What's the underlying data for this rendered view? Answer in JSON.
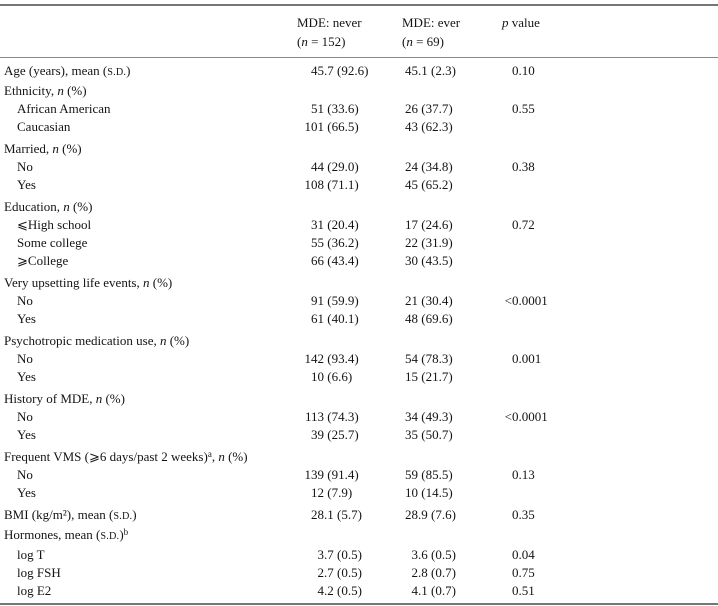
{
  "table": {
    "columns": {
      "never": {
        "title": "MDE: never",
        "n_parts": [
          {
            "t": "("
          },
          {
            "t": "n",
            "s": "it"
          },
          {
            "t": " = 152)"
          }
        ]
      },
      "ever": {
        "title": "MDE: ever",
        "n_parts": [
          {
            "t": "("
          },
          {
            "t": "n",
            "s": "it"
          },
          {
            "t": " = 69)"
          }
        ]
      },
      "p": {
        "label_parts": [
          {
            "t": "p",
            "s": "it"
          },
          {
            "t": " value"
          }
        ]
      }
    },
    "rows": [
      {
        "indent": 0,
        "gap": false,
        "label": [
          {
            "t": "Age (years), mean ("
          },
          {
            "t": "s.d.",
            "s": "sc"
          },
          {
            "t": ")"
          }
        ],
        "v1": "45.7 (92.6)",
        "v2": "45.1 (2.3)",
        "p": "0.10"
      },
      {
        "indent": 0,
        "gap": false,
        "label": [
          {
            "t": "Ethnicity, "
          },
          {
            "t": "n",
            "s": "it"
          },
          {
            "t": " (%)"
          }
        ],
        "v1": "",
        "v2": "",
        "p": ""
      },
      {
        "indent": 1,
        "gap": false,
        "label": [
          {
            "t": "African American"
          }
        ],
        "v1": "51 (33.6)",
        "v2": "26 (37.7)",
        "p": "0.55"
      },
      {
        "indent": 1,
        "gap": false,
        "label": [
          {
            "t": "Caucasian"
          }
        ],
        "v1": "101 (66.5)",
        "v2": "43 (62.3)",
        "p": ""
      },
      {
        "indent": 0,
        "gap": true,
        "label": [
          {
            "t": "Married, "
          },
          {
            "t": "n",
            "s": "it"
          },
          {
            "t": " (%)"
          }
        ],
        "v1": "",
        "v2": "",
        "p": ""
      },
      {
        "indent": 1,
        "gap": false,
        "label": [
          {
            "t": "No"
          }
        ],
        "v1": "44 (29.0)",
        "v2": "24 (34.8)",
        "p": "0.38"
      },
      {
        "indent": 1,
        "gap": false,
        "label": [
          {
            "t": "Yes"
          }
        ],
        "v1": "108 (71.1)",
        "v2": "45 (65.2)",
        "p": ""
      },
      {
        "indent": 0,
        "gap": true,
        "label": [
          {
            "t": "Education, "
          },
          {
            "t": "n",
            "s": "it"
          },
          {
            "t": " (%)"
          }
        ],
        "v1": "",
        "v2": "",
        "p": ""
      },
      {
        "indent": 1,
        "gap": false,
        "label": [
          {
            "t": "⩽High school"
          }
        ],
        "v1": "31 (20.4)",
        "v2": "17 (24.6)",
        "p": "0.72"
      },
      {
        "indent": 1,
        "gap": false,
        "label": [
          {
            "t": "Some college"
          }
        ],
        "v1": "55 (36.2)",
        "v2": "22 (31.9)",
        "p": ""
      },
      {
        "indent": 1,
        "gap": false,
        "label": [
          {
            "t": "⩾College"
          }
        ],
        "v1": "66 (43.4)",
        "v2": "30 (43.5)",
        "p": ""
      },
      {
        "indent": 0,
        "gap": true,
        "label": [
          {
            "t": "Very upsetting life events, "
          },
          {
            "t": "n",
            "s": "it"
          },
          {
            "t": " (%)"
          }
        ],
        "v1": "",
        "v2": "",
        "p": ""
      },
      {
        "indent": 1,
        "gap": false,
        "label": [
          {
            "t": "No"
          }
        ],
        "v1": "91 (59.9)",
        "v2": "21 (30.4)",
        "p": "<0.0001"
      },
      {
        "indent": 1,
        "gap": false,
        "label": [
          {
            "t": "Yes"
          }
        ],
        "v1": "61 (40.1)",
        "v2": "48 (69.6)",
        "p": ""
      },
      {
        "indent": 0,
        "gap": true,
        "label": [
          {
            "t": "Psychotropic medication use, "
          },
          {
            "t": "n",
            "s": "it"
          },
          {
            "t": " (%)"
          }
        ],
        "v1": "",
        "v2": "",
        "p": ""
      },
      {
        "indent": 1,
        "gap": false,
        "label": [
          {
            "t": "No"
          }
        ],
        "v1": "142 (93.4)",
        "v2": "54 (78.3)",
        "p": "0.001"
      },
      {
        "indent": 1,
        "gap": false,
        "label": [
          {
            "t": "Yes"
          }
        ],
        "v1": "10 (6.6)",
        "v2": "15 (21.7)",
        "p": ""
      },
      {
        "indent": 0,
        "gap": true,
        "label": [
          {
            "t": "History of MDE, "
          },
          {
            "t": "n",
            "s": "it"
          },
          {
            "t": " (%)"
          }
        ],
        "v1": "",
        "v2": "",
        "p": ""
      },
      {
        "indent": 1,
        "gap": false,
        "label": [
          {
            "t": "No"
          }
        ],
        "v1": "113 (74.3)",
        "v2": "34 (49.3)",
        "p": "<0.0001"
      },
      {
        "indent": 1,
        "gap": false,
        "label": [
          {
            "t": "Yes"
          }
        ],
        "v1": "39 (25.7)",
        "v2": "35 (50.7)",
        "p": ""
      },
      {
        "indent": 0,
        "gap": true,
        "label": [
          {
            "t": "Frequent VMS (⩾6 days/past 2 weeks)"
          },
          {
            "t": "a",
            "s": "sup"
          },
          {
            "t": ", "
          },
          {
            "t": "n",
            "s": "it"
          },
          {
            "t": " (%)"
          }
        ],
        "v1": "",
        "v2": "",
        "p": ""
      },
      {
        "indent": 1,
        "gap": false,
        "label": [
          {
            "t": "No"
          }
        ],
        "v1": "139 (91.4)",
        "v2": "59 (85.5)",
        "p": "0.13"
      },
      {
        "indent": 1,
        "gap": false,
        "label": [
          {
            "t": "Yes"
          }
        ],
        "v1": "12 (7.9)",
        "v2": "10 (14.5)",
        "p": ""
      },
      {
        "indent": 0,
        "gap": true,
        "label": [
          {
            "t": "BMI (kg/m²), mean ("
          },
          {
            "t": "s.d.",
            "s": "sc"
          },
          {
            "t": ")"
          }
        ],
        "v1": "28.1 (5.7)",
        "v2": "28.9 (7.6)",
        "p": "0.35"
      },
      {
        "indent": 0,
        "gap": false,
        "label": [
          {
            "t": "Hormones, mean ("
          },
          {
            "t": "s.d.",
            "s": "sc"
          },
          {
            "t": ")"
          },
          {
            "t": "b",
            "s": "sup"
          }
        ],
        "v1": "",
        "v2": "",
        "p": ""
      },
      {
        "indent": 1,
        "gap": false,
        "label": [
          {
            "t": "log T"
          }
        ],
        "v1": "3.7 (0.5)",
        "v2": "3.6 (0.5)",
        "p": "0.04"
      },
      {
        "indent": 1,
        "gap": false,
        "label": [
          {
            "t": "log FSH"
          }
        ],
        "v1": "2.7 (0.5)",
        "v2": "2.8 (0.7)",
        "p": "0.75"
      },
      {
        "indent": 1,
        "gap": false,
        "label": [
          {
            "t": "log E2"
          }
        ],
        "v1": "4.2 (0.5)",
        "v2": "4.1 (0.7)",
        "p": "0.51"
      }
    ]
  }
}
